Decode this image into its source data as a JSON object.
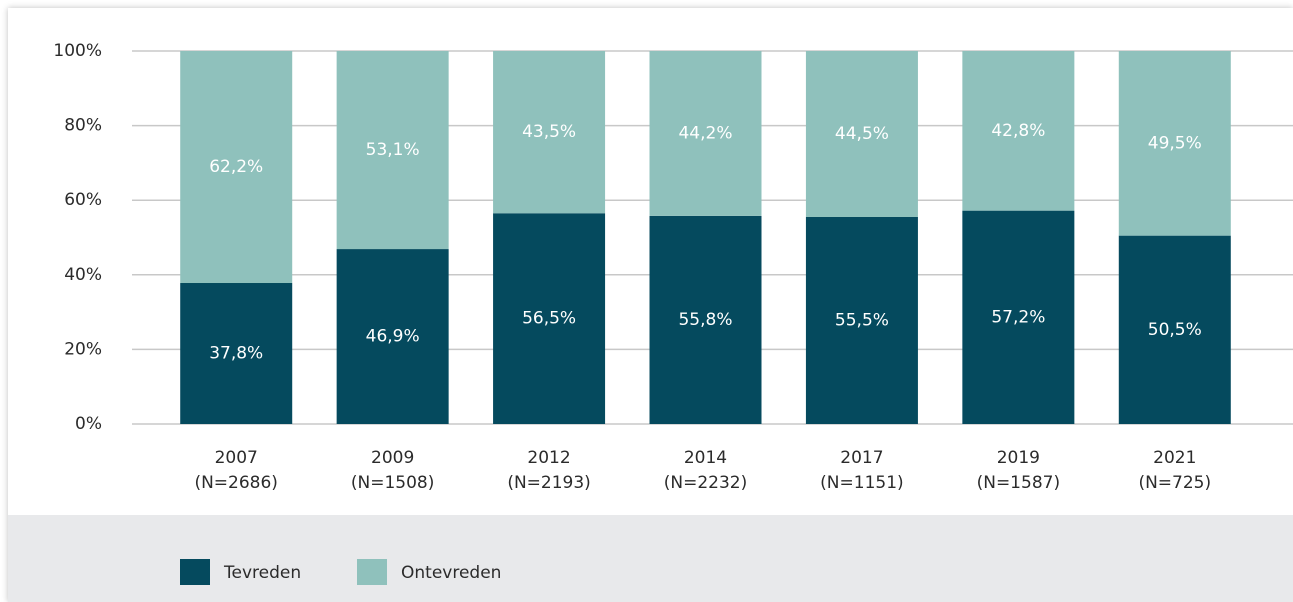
{
  "chart_data": {
    "type": "stacked_bar",
    "categories": [
      "2007\n(N=2686)",
      "2009\n(N=1508)",
      "2012\n(N=2193)",
      "2014\n(N=2232)",
      "2017\n(N=1151)",
      "2019\n(N=1587)",
      "2021\n(N=725)"
    ],
    "series": [
      {
        "name": "Tevreden",
        "color": "#054a5e",
        "values": [
          37.8,
          46.9,
          56.5,
          55.8,
          55.5,
          57.2,
          50.5
        ],
        "value_labels": [
          "37,8%",
          "46,9%",
          "56,5%",
          "55,8%",
          "55,5%",
          "57,2%",
          "50,5%"
        ]
      },
      {
        "name": "Ontevreden",
        "color": "#8fc1bc",
        "values": [
          62.2,
          53.1,
          43.5,
          44.2,
          44.5,
          42.8,
          49.5
        ],
        "value_labels": [
          "62,2%",
          "53,1%",
          "43,5%",
          "44,2%",
          "44,5%",
          "42,8%",
          "49,5%"
        ]
      }
    ],
    "ylim": [
      0,
      100
    ],
    "yticks": [
      {
        "value": 0,
        "label": "0%"
      },
      {
        "value": 20,
        "label": "20%"
      },
      {
        "value": 40,
        "label": "40%"
      },
      {
        "value": 60,
        "label": "60%"
      },
      {
        "value": 80,
        "label": "80%"
      },
      {
        "value": 100,
        "label": "100%"
      }
    ],
    "grid": true,
    "legend": "bottom"
  }
}
